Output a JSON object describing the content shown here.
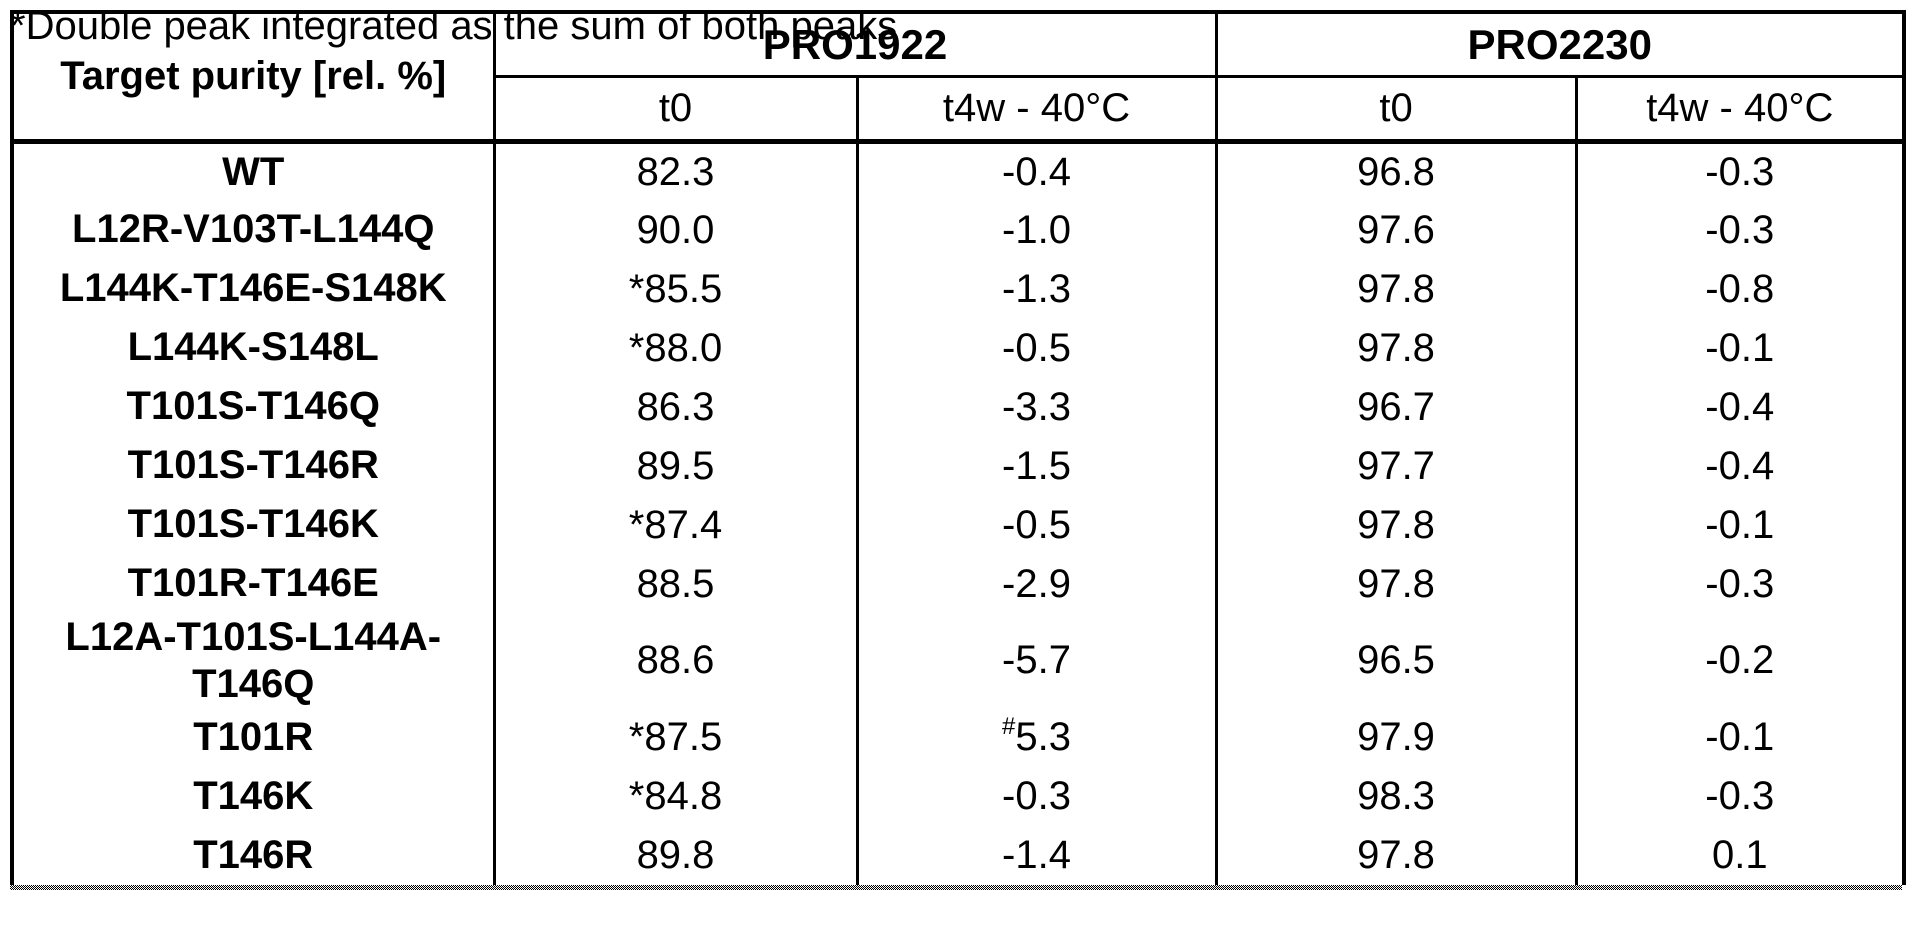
{
  "table": {
    "corner_header": "Target purity [rel. %]",
    "groups": [
      {
        "label": "PRO1922"
      },
      {
        "label": "PRO2230"
      }
    ],
    "sub_headers": [
      "t0",
      "t4w - 40°C",
      "t0",
      "t4w - 40°C"
    ],
    "rows": [
      {
        "label": "WT",
        "values": [
          "82.3",
          "-0.4",
          "96.8",
          "-0.3"
        ]
      },
      {
        "label": "L12R-V103T-L144Q",
        "values": [
          "90.0",
          "-1.0",
          "97.6",
          "-0.3"
        ]
      },
      {
        "label": "L144K-T146E-S148K",
        "values": [
          "*85.5",
          "-1.3",
          "97.8",
          "-0.8"
        ]
      },
      {
        "label": "L144K-S148L",
        "values": [
          "*88.0",
          "-0.5",
          "97.8",
          "-0.1"
        ]
      },
      {
        "label": "T101S-T146Q",
        "values": [
          "86.3",
          "-3.3",
          "96.7",
          "-0.4"
        ]
      },
      {
        "label": "T101S-T146R",
        "values": [
          "89.5",
          "-1.5",
          "97.7",
          "-0.4"
        ]
      },
      {
        "label": "T101S-T146K",
        "values": [
          "*87.4",
          "-0.5",
          "97.8",
          "-0.1"
        ]
      },
      {
        "label": "T101R-T146E",
        "values": [
          "88.5",
          "-2.9",
          "97.8",
          "-0.3"
        ]
      },
      {
        "label": "L12A-T101S-L144A-T146Q",
        "values": [
          "88.6",
          "-5.7",
          "96.5",
          "-0.2"
        ]
      },
      {
        "label": "T101R",
        "values": [
          "*87.5",
          "#5.3",
          "97.9",
          "-0.1"
        ]
      },
      {
        "label": "T146K",
        "values": [
          "*84.8",
          "-0.3",
          "98.3",
          "-0.3"
        ]
      },
      {
        "label": "T146R",
        "values": [
          "89.8",
          "-1.4",
          "97.8",
          "0.1"
        ]
      }
    ],
    "footnote": "*Double peak integrated as the sum of both peaks"
  },
  "colors": {
    "text": "#000000",
    "background": "#ffffff",
    "border": "#000000"
  }
}
